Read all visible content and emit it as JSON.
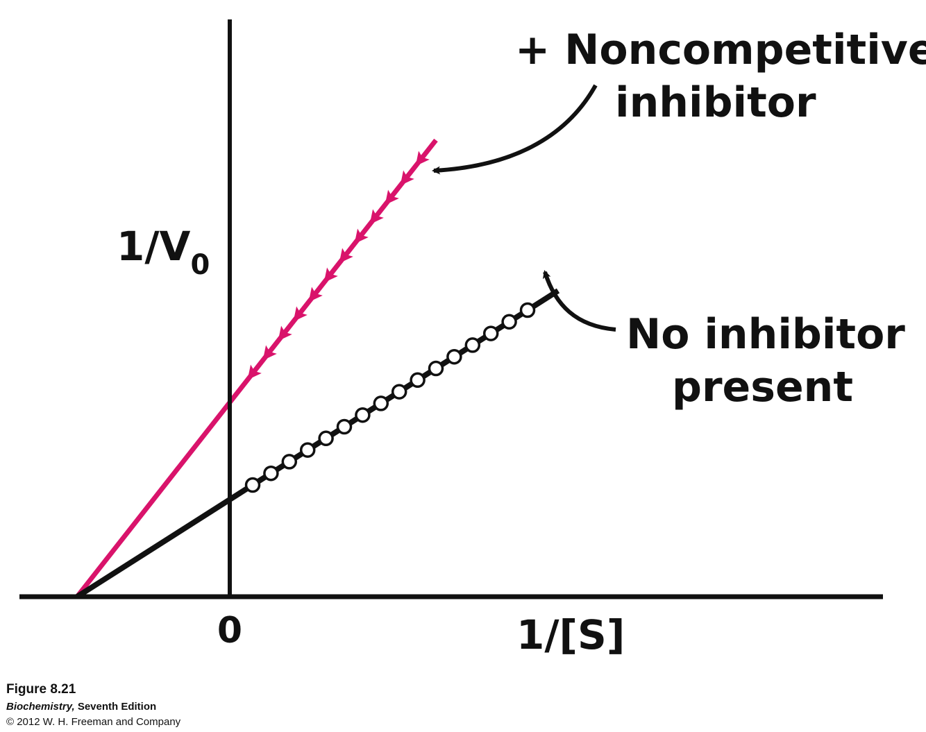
{
  "chart_data": {
    "type": "line",
    "title": "",
    "xlabel": "1/[S]",
    "ylabel_main": "1/V",
    "ylabel_sub": "0",
    "x_tick_labels": [
      {
        "value": 0,
        "label": "0"
      }
    ],
    "xlim": [
      -2.2,
      6.8
    ],
    "ylim": [
      0,
      6
    ],
    "grid": false,
    "series": [
      {
        "name": "+ Noncompetitive inhibitor",
        "label_lines": [
          "+ Noncompetitive",
          "inhibitor"
        ],
        "color": "#d9136b",
        "marker": "arrowhead",
        "slope": 1.0,
        "intercept": 2.0,
        "x_range": [
          -2.0,
          2.7
        ],
        "x": [
          0.3,
          0.5,
          0.7,
          0.9,
          1.1,
          1.3,
          1.5,
          1.7,
          1.9,
          2.1,
          2.3,
          2.5
        ]
      },
      {
        "name": "No inhibitor present",
        "label_lines": [
          "No inhibitor",
          "present"
        ],
        "color": "#111111",
        "marker": "open-circle",
        "slope": 0.5,
        "intercept": 1.0,
        "x_range": [
          -2.0,
          4.3
        ],
        "x": [
          0.3,
          0.54,
          0.78,
          1.02,
          1.26,
          1.5,
          1.74,
          1.98,
          2.22,
          2.46,
          2.7,
          2.94,
          3.18,
          3.42,
          3.66,
          3.9
        ]
      }
    ]
  },
  "caption": {
    "figure": "Figure 8.21",
    "book_title": "Biochemistry,",
    "edition": " Seventh Edition",
    "copyright": "© 2012 W. H. Freeman and Company"
  }
}
